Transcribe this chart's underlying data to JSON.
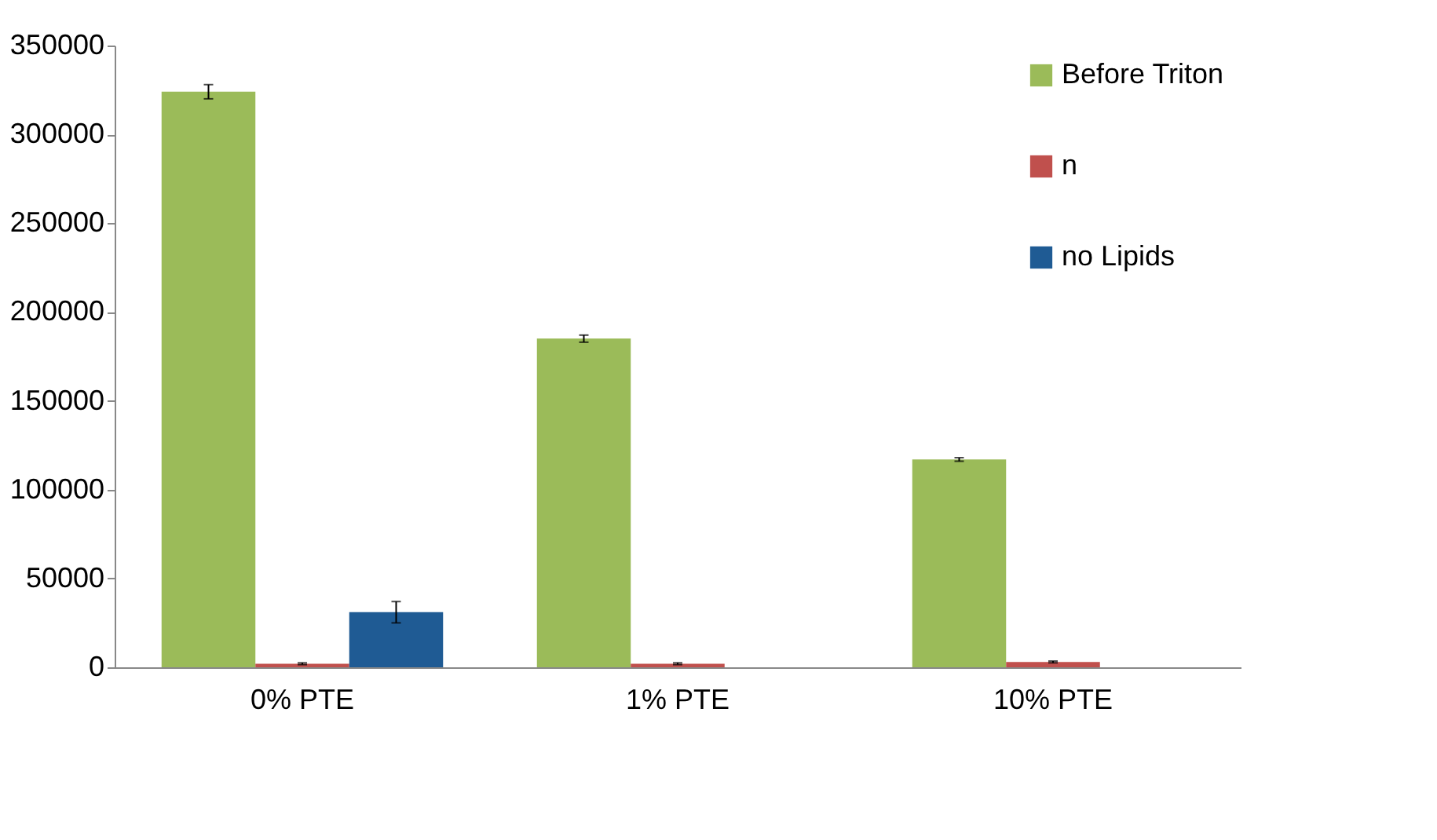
{
  "chart_data": {
    "type": "bar",
    "categories": [
      "0% PTE",
      "1% PTE",
      "10% PTE"
    ],
    "series": [
      {
        "name": "Before Triton",
        "color": "#9bbb59",
        "values": [
          324000,
          185000,
          117000
        ],
        "errors": [
          4000,
          2000,
          1000
        ]
      },
      {
        "name": "n",
        "color": "#c0504d",
        "values": [
          2000,
          2000,
          3000
        ],
        "errors": [
          500,
          500,
          500
        ]
      },
      {
        "name": "no Lipids",
        "color": "#1f5b94",
        "values": [
          31000,
          null,
          null
        ],
        "errors": [
          6000,
          null,
          null
        ]
      }
    ],
    "ylim": [
      0,
      350000
    ],
    "yticks": [
      0,
      50000,
      100000,
      150000,
      200000,
      250000,
      300000,
      350000
    ],
    "grid": false,
    "legend": "top right"
  }
}
